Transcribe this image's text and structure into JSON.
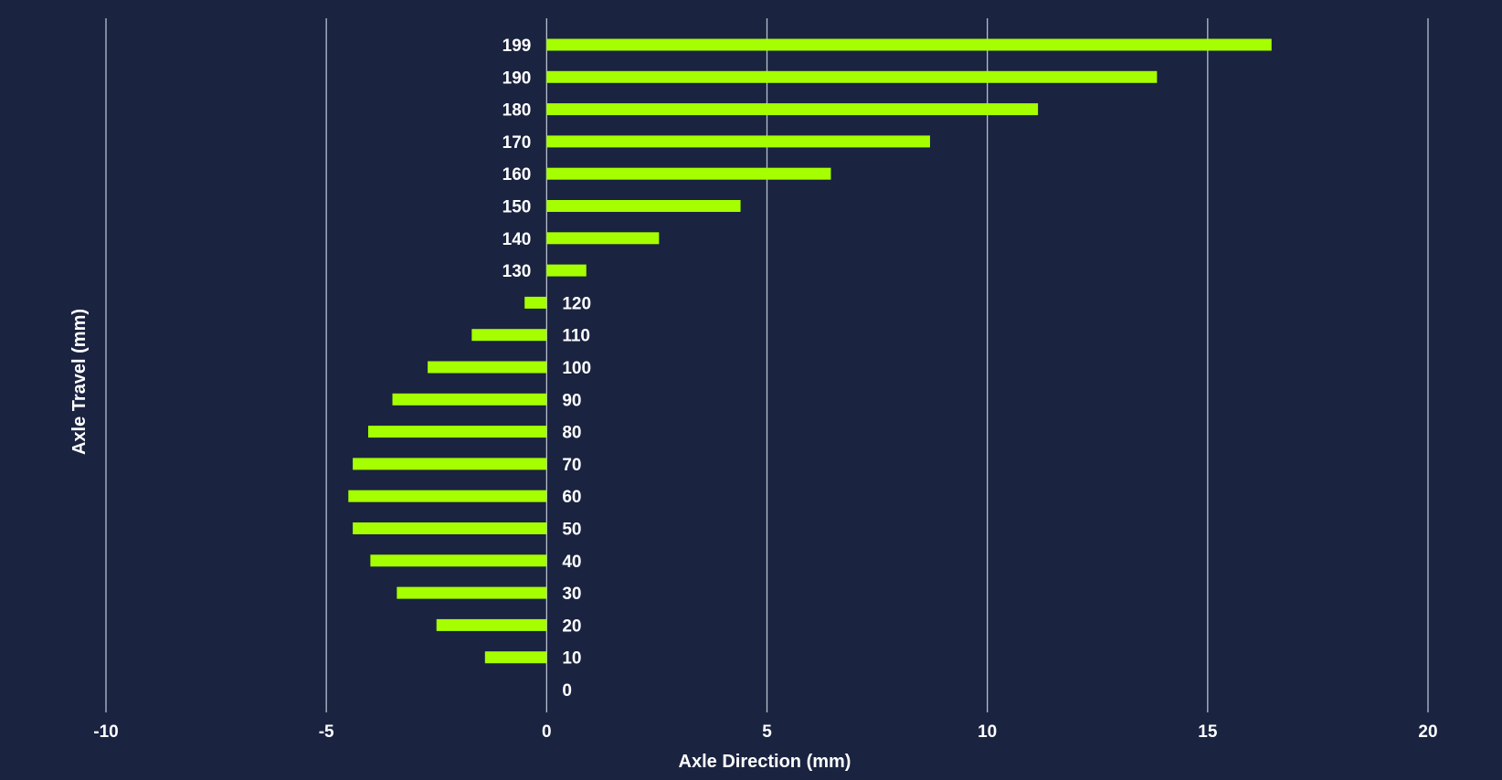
{
  "chart_data": {
    "type": "bar",
    "orientation": "horizontal",
    "title": "",
    "xlabel": "Axle Direction (mm)",
    "ylabel": "Axle Travel (mm)",
    "xlim": [
      -10,
      20
    ],
    "x_ticks": [
      "-10",
      "-5",
      "0",
      "5",
      "10",
      "15",
      "20"
    ],
    "grid": "vertical",
    "categories": [
      "0",
      "10",
      "20",
      "30",
      "40",
      "50",
      "60",
      "70",
      "80",
      "90",
      "100",
      "110",
      "120",
      "130",
      "140",
      "150",
      "160",
      "170",
      "180",
      "190",
      "199"
    ],
    "values": [
      0,
      -1.4,
      -2.5,
      -3.4,
      -4.0,
      -4.4,
      -4.5,
      -4.4,
      -4.05,
      -3.5,
      -2.7,
      -1.7,
      -0.5,
      0.9,
      2.55,
      4.4,
      6.45,
      8.7,
      11.15,
      13.85,
      16.45
    ],
    "colors": {
      "background": "#1a2340",
      "bar": "#a6ff00",
      "grid": "#b8bfce",
      "text": "#ffffff"
    }
  }
}
